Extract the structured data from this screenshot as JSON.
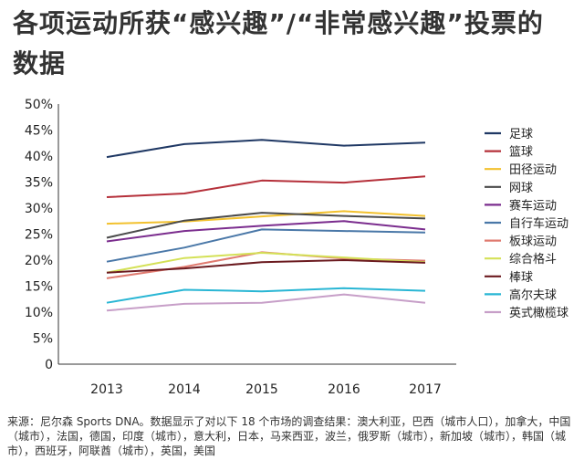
{
  "title": "各项运动所获“感兴趣”/“非常感兴趣”投票的数据",
  "source": "来源：尼尔森 Sports DNA。数据显示了对以下 18 个市场的调查结果：澳大利亚，巴西（城市人口），加拿大，中国（城市），法国，德国，印度（城市），意大利，日本，马来西亚，波兰，俄罗斯（城市），新加坡（城市），韩国（城市），西班牙，阿联酋（城市），英国，美国",
  "chart_data": {
    "type": "line",
    "x": [
      "2013",
      "2014",
      "2015",
      "2016",
      "2017"
    ],
    "ylim": [
      0,
      50
    ],
    "yticks": [
      "0",
      "5%",
      "10%",
      "15%",
      "20%",
      "25%",
      "30%",
      "35%",
      "40%",
      "45%",
      "50%"
    ],
    "grid": false,
    "legend_position": "right",
    "series": [
      {
        "name": "足球",
        "color": "#1f3864",
        "values": [
          39.8,
          42.3,
          43.1,
          42.0,
          42.6
        ]
      },
      {
        "name": "篮球",
        "color": "#b5303a",
        "values": [
          32.1,
          32.8,
          35.3,
          34.9,
          36.1
        ]
      },
      {
        "name": "田径运动",
        "color": "#f2c12e",
        "values": [
          27.0,
          27.4,
          28.4,
          29.4,
          28.5
        ]
      },
      {
        "name": "网球",
        "color": "#4a4a4a",
        "values": [
          24.3,
          27.6,
          29.1,
          28.5,
          28.0
        ]
      },
      {
        "name": "赛车运动",
        "color": "#7b2d8e",
        "values": [
          23.6,
          25.6,
          26.6,
          27.5,
          25.9
        ]
      },
      {
        "name": "自行车运动",
        "color": "#4a78a8",
        "values": [
          19.7,
          22.4,
          25.9,
          25.6,
          25.3
        ]
      },
      {
        "name": "板球运动",
        "color": "#e07b70",
        "values": [
          16.5,
          18.7,
          21.5,
          20.3,
          19.9
        ]
      },
      {
        "name": "综合格斗",
        "color": "#d4e157",
        "values": [
          17.6,
          20.4,
          21.4,
          20.5,
          19.6
        ]
      },
      {
        "name": "棒球",
        "color": "#6b1a1f",
        "values": [
          17.6,
          18.4,
          19.6,
          20.0,
          19.5
        ]
      },
      {
        "name": "高尔夫球",
        "color": "#29b6d4",
        "values": [
          11.8,
          14.3,
          14.0,
          14.6,
          14.1
        ]
      },
      {
        "name": "英式橄榄球",
        "color": "#c79fc8",
        "values": [
          10.3,
          11.6,
          11.8,
          13.4,
          11.8
        ]
      }
    ]
  }
}
